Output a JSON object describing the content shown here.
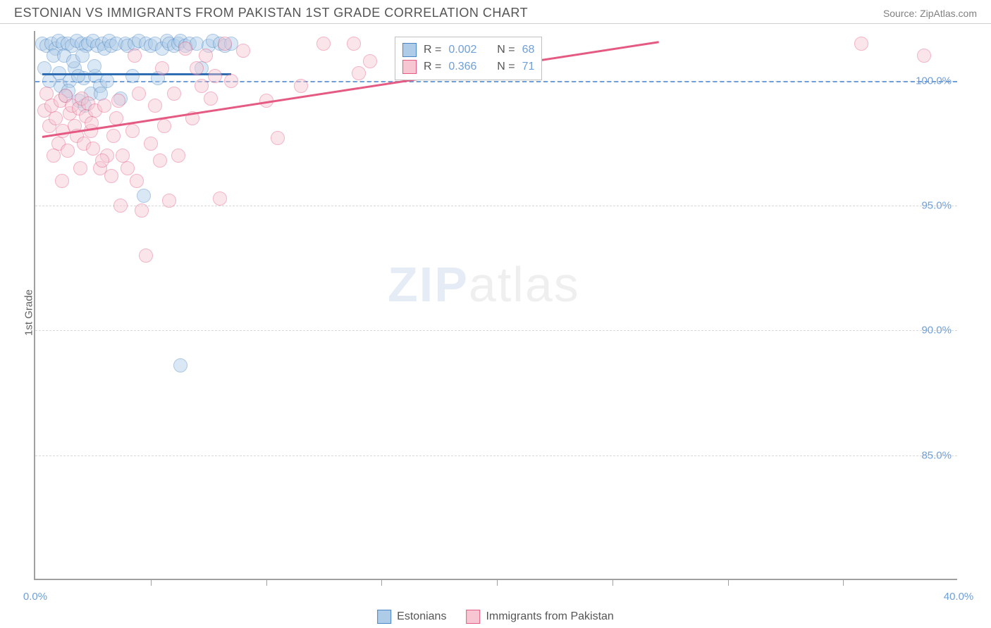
{
  "header": {
    "title": "ESTONIAN VS IMMIGRANTS FROM PAKISTAN 1ST GRADE CORRELATION CHART",
    "source": "Source: ZipAtlas.com"
  },
  "chart": {
    "type": "scatter",
    "ylabel": "1st Grade",
    "xlim": [
      0,
      40
    ],
    "ylim": [
      80,
      102
    ],
    "y_ticks": [
      85,
      90,
      95,
      100
    ],
    "y_tick_labels": [
      "85.0%",
      "90.0%",
      "95.0%",
      "100.0%"
    ],
    "x_ticks_minor": [
      5,
      10,
      15,
      20,
      25,
      30,
      35
    ],
    "x_tick_labels": [
      {
        "pos": 0,
        "label": "0.0%"
      },
      {
        "pos": 40,
        "label": "40.0%"
      }
    ],
    "dashline_y": 100,
    "grid_color": "#d8d8d8",
    "background_color": "#ffffff",
    "marker_radius": 10,
    "marker_opacity": 0.45,
    "watermark": {
      "zip": "ZIP",
      "atlas": "atlas"
    },
    "series": [
      {
        "name": "Estonians",
        "color_fill": "#aecce8",
        "color_stroke": "#4a86c5",
        "R": "0.002",
        "N": "68",
        "trend": {
          "x1": 0.3,
          "y1": 100.3,
          "x2": 8.5,
          "y2": 100.3,
          "color": "#2f6db3"
        },
        "points": [
          [
            0.3,
            101.5
          ],
          [
            0.5,
            101.4
          ],
          [
            0.7,
            101.5
          ],
          [
            0.9,
            101.3
          ],
          [
            1.0,
            101.6
          ],
          [
            1.1,
            99.8
          ],
          [
            1.2,
            101.5
          ],
          [
            1.3,
            99.4
          ],
          [
            1.4,
            101.5
          ],
          [
            1.5,
            100.0
          ],
          [
            1.6,
            101.4
          ],
          [
            1.7,
            100.5
          ],
          [
            1.8,
            101.6
          ],
          [
            1.9,
            99.2
          ],
          [
            2.0,
            101.5
          ],
          [
            2.1,
            100.1
          ],
          [
            2.2,
            101.4
          ],
          [
            2.3,
            101.5
          ],
          [
            2.4,
            99.5
          ],
          [
            2.5,
            101.6
          ],
          [
            2.6,
            100.2
          ],
          [
            2.7,
            101.4
          ],
          [
            2.8,
            99.8
          ],
          [
            2.9,
            101.5
          ],
          [
            3.0,
            101.3
          ],
          [
            3.1,
            100.0
          ],
          [
            3.2,
            101.6
          ],
          [
            3.3,
            101.4
          ],
          [
            3.5,
            101.5
          ],
          [
            3.7,
            99.3
          ],
          [
            3.9,
            101.5
          ],
          [
            4.0,
            101.4
          ],
          [
            4.2,
            100.2
          ],
          [
            4.3,
            101.5
          ],
          [
            4.5,
            101.6
          ],
          [
            4.7,
            95.4
          ],
          [
            4.8,
            101.5
          ],
          [
            5.0,
            101.4
          ],
          [
            5.2,
            101.5
          ],
          [
            5.3,
            100.1
          ],
          [
            5.5,
            101.3
          ],
          [
            5.7,
            101.6
          ],
          [
            5.8,
            101.5
          ],
          [
            6.0,
            101.4
          ],
          [
            6.2,
            101.5
          ],
          [
            6.3,
            101.6
          ],
          [
            6.5,
            101.4
          ],
          [
            6.7,
            101.5
          ],
          [
            7.0,
            101.5
          ],
          [
            7.2,
            100.5
          ],
          [
            7.5,
            101.4
          ],
          [
            7.7,
            101.6
          ],
          [
            8.0,
            101.5
          ],
          [
            8.2,
            101.4
          ],
          [
            8.5,
            101.5
          ],
          [
            6.3,
            88.6
          ],
          [
            0.4,
            100.5
          ],
          [
            0.6,
            100.0
          ],
          [
            0.8,
            101.0
          ],
          [
            1.05,
            100.3
          ],
          [
            1.25,
            101.0
          ],
          [
            1.45,
            99.6
          ],
          [
            1.65,
            100.8
          ],
          [
            1.85,
            100.2
          ],
          [
            2.05,
            101.0
          ],
          [
            2.15,
            99.0
          ],
          [
            2.55,
            100.6
          ],
          [
            2.85,
            99.5
          ]
        ]
      },
      {
        "name": "Immigrants from Pakistan",
        "color_fill": "#f6c7d3",
        "color_stroke": "#e55a82",
        "R": "0.366",
        "N": "71",
        "trend": {
          "x1": 0.3,
          "y1": 97.8,
          "x2": 27.0,
          "y2": 101.6,
          "color": "#e55a82"
        },
        "points": [
          [
            0.4,
            98.8
          ],
          [
            0.6,
            98.2
          ],
          [
            0.7,
            99.0
          ],
          [
            0.9,
            98.5
          ],
          [
            1.0,
            97.5
          ],
          [
            1.1,
            99.2
          ],
          [
            1.2,
            98.0
          ],
          [
            1.3,
            99.4
          ],
          [
            1.4,
            97.2
          ],
          [
            1.5,
            98.7
          ],
          [
            1.6,
            99.0
          ],
          [
            1.7,
            98.2
          ],
          [
            1.8,
            97.8
          ],
          [
            1.9,
            98.9
          ],
          [
            2.0,
            99.3
          ],
          [
            2.1,
            97.5
          ],
          [
            2.2,
            98.6
          ],
          [
            2.3,
            99.1
          ],
          [
            2.4,
            98.0
          ],
          [
            2.5,
            97.3
          ],
          [
            2.6,
            98.8
          ],
          [
            2.8,
            96.5
          ],
          [
            3.0,
            99.0
          ],
          [
            3.1,
            97.0
          ],
          [
            3.3,
            96.2
          ],
          [
            3.5,
            98.5
          ],
          [
            3.6,
            99.2
          ],
          [
            3.8,
            97.0
          ],
          [
            4.0,
            96.5
          ],
          [
            4.2,
            98.0
          ],
          [
            4.4,
            96.0
          ],
          [
            4.5,
            99.5
          ],
          [
            4.8,
            93.0
          ],
          [
            5.0,
            97.5
          ],
          [
            5.2,
            99.0
          ],
          [
            5.4,
            96.8
          ],
          [
            5.6,
            98.2
          ],
          [
            5.8,
            95.2
          ],
          [
            6.0,
            99.5
          ],
          [
            6.2,
            97.0
          ],
          [
            6.5,
            101.3
          ],
          [
            7.0,
            100.5
          ],
          [
            7.2,
            99.8
          ],
          [
            7.4,
            101.0
          ],
          [
            7.6,
            99.3
          ],
          [
            7.8,
            100.2
          ],
          [
            8.0,
            95.3
          ],
          [
            8.2,
            101.5
          ],
          [
            8.5,
            100.0
          ],
          [
            10.0,
            99.2
          ],
          [
            10.5,
            97.7
          ],
          [
            12.5,
            101.5
          ],
          [
            13.8,
            101.5
          ],
          [
            14.0,
            100.3
          ],
          [
            3.7,
            95.0
          ],
          [
            4.6,
            94.8
          ],
          [
            2.9,
            96.8
          ],
          [
            3.4,
            97.8
          ],
          [
            1.95,
            96.5
          ],
          [
            2.45,
            98.3
          ],
          [
            0.5,
            99.5
          ],
          [
            0.8,
            97.0
          ],
          [
            1.15,
            96.0
          ],
          [
            38.5,
            101.0
          ],
          [
            35.8,
            101.5
          ],
          [
            14.5,
            100.8
          ],
          [
            11.5,
            99.8
          ],
          [
            9.0,
            101.2
          ],
          [
            6.8,
            98.5
          ],
          [
            5.5,
            100.5
          ],
          [
            4.3,
            101.0
          ]
        ]
      }
    ],
    "stat_box": {
      "rows": [
        {
          "swatch_fill": "#aecce8",
          "swatch_stroke": "#4a86c5",
          "r_label": "R =",
          "r_val": "0.002",
          "n_label": "N =",
          "n_val": "68"
        },
        {
          "swatch_fill": "#f6c7d3",
          "swatch_stroke": "#e55a82",
          "r_label": "R =",
          "r_val": "0.366",
          "n_label": "N =",
          "n_val": "71"
        }
      ]
    },
    "legend": [
      {
        "swatch_fill": "#aecce8",
        "swatch_stroke": "#4a86c5",
        "label": "Estonians"
      },
      {
        "swatch_fill": "#f6c7d3",
        "swatch_stroke": "#e55a82",
        "label": "Immigrants from Pakistan"
      }
    ]
  }
}
